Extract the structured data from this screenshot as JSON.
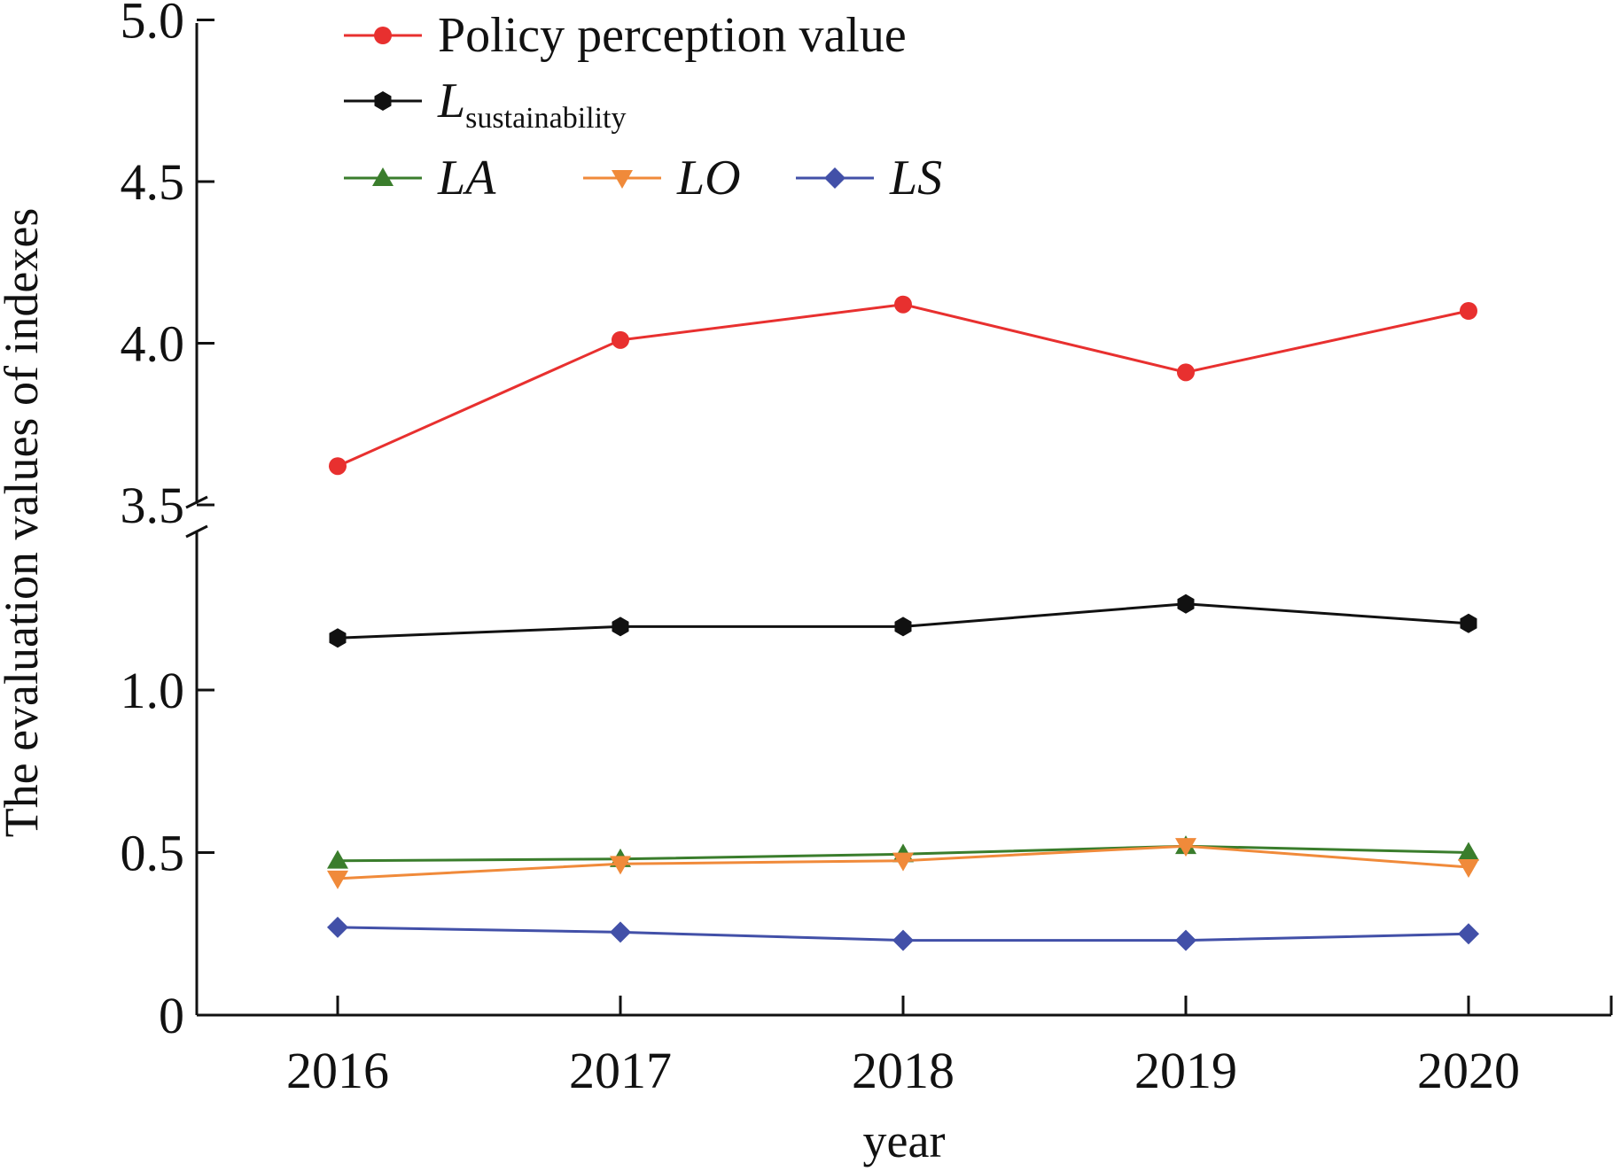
{
  "chart_data": {
    "type": "line",
    "x_title": "year",
    "y_title": "The evaluation values of indexes",
    "categories": [
      "2016",
      "2017",
      "2018",
      "2019",
      "2020"
    ],
    "y_axis": {
      "broken": true,
      "lower_segment": [
        0,
        1.5
      ],
      "upper_segment": [
        3.5,
        5.0
      ],
      "tick_values": [
        0,
        0.5,
        1.0,
        3.5,
        4.0,
        4.5,
        5.0
      ],
      "tick_labels": [
        "0",
        "0.5",
        "1.0",
        "3.5",
        "4.0",
        "4.5",
        "5.0"
      ]
    },
    "grid": false,
    "legend_position": "top-left",
    "series": [
      {
        "name": "Policy perception value",
        "name_main": "Policy perception value",
        "name_sub": "",
        "italic": false,
        "color": "#e8302f",
        "marker": "circle",
        "values": [
          3.62,
          4.01,
          4.12,
          3.91,
          4.1
        ]
      },
      {
        "name": "Lsustainability",
        "name_main": "L",
        "name_sub": "sustainability",
        "italic": true,
        "color": "#111111",
        "marker": "hexagon",
        "values": [
          1.16,
          1.195,
          1.195,
          1.265,
          1.205
        ]
      },
      {
        "name": "LA",
        "name_main": "LA",
        "name_sub": "",
        "italic": true,
        "color": "#3a7d2c",
        "marker": "triangle-up",
        "values": [
          0.475,
          0.48,
          0.495,
          0.52,
          0.5
        ]
      },
      {
        "name": "LO",
        "name_main": "LO",
        "name_sub": "",
        "italic": true,
        "color": "#f08a3a",
        "marker": "triangle-down",
        "values": [
          0.42,
          0.465,
          0.475,
          0.52,
          0.455
        ]
      },
      {
        "name": "LS",
        "name_main": "LS",
        "name_sub": "",
        "italic": true,
        "color": "#4250a8",
        "marker": "diamond",
        "values": [
          0.27,
          0.255,
          0.23,
          0.23,
          0.25
        ]
      }
    ]
  }
}
